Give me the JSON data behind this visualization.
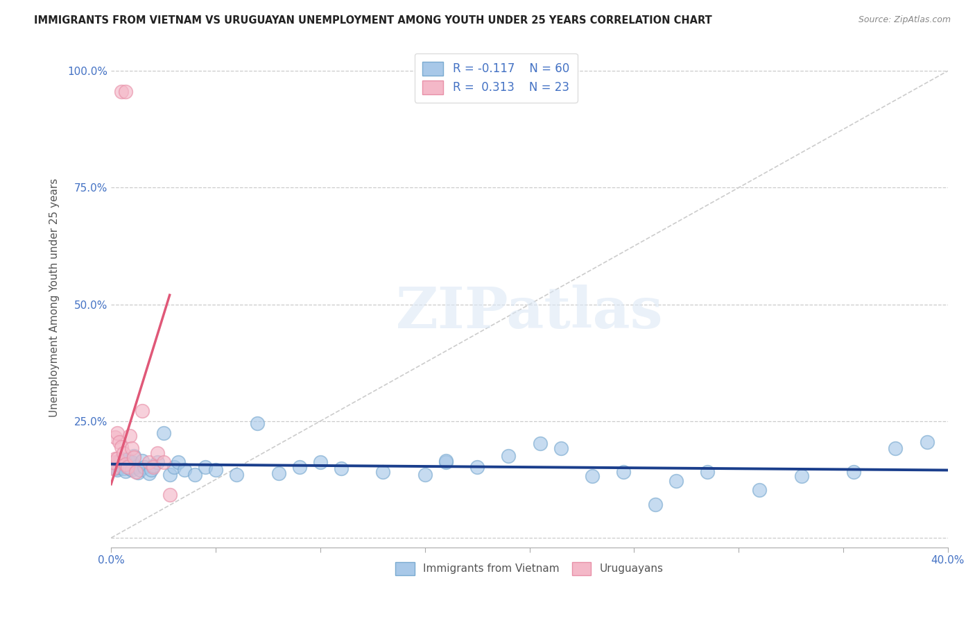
{
  "title": "IMMIGRANTS FROM VIETNAM VS URUGUAYAN UNEMPLOYMENT AMONG YOUTH UNDER 25 YEARS CORRELATION CHART",
  "source": "Source: ZipAtlas.com",
  "ylabel": "Unemployment Among Youth under 25 years",
  "xlim": [
    0.0,
    0.4
  ],
  "ylim": [
    -0.02,
    1.05
  ],
  "xticks": [
    0.0,
    0.05,
    0.1,
    0.15,
    0.2,
    0.25,
    0.3,
    0.35,
    0.4
  ],
  "yticks": [
    0.0,
    0.25,
    0.5,
    0.75,
    1.0
  ],
  "ytick_labels": [
    "",
    "25.0%",
    "50.0%",
    "75.0%",
    "100.0%"
  ],
  "bg_color": "#ffffff",
  "grid_color": "#cccccc",
  "r_blue": -0.117,
  "n_blue": 60,
  "r_pink": 0.313,
  "n_pink": 23,
  "blue_color": "#a8c8e8",
  "pink_color": "#f4b8c8",
  "blue_edge_color": "#7aaad0",
  "pink_edge_color": "#e890a8",
  "blue_line_color": "#1a3e8c",
  "pink_line_color": "#e05878",
  "diag_line_color": "#cccccc",
  "blue_scatter_x": [
    0.001,
    0.002,
    0.002,
    0.003,
    0.003,
    0.004,
    0.004,
    0.005,
    0.005,
    0.006,
    0.006,
    0.007,
    0.007,
    0.008,
    0.008,
    0.009,
    0.01,
    0.01,
    0.011,
    0.012,
    0.013,
    0.014,
    0.015,
    0.016,
    0.018,
    0.019,
    0.02,
    0.022,
    0.025,
    0.028,
    0.03,
    0.032,
    0.035,
    0.04,
    0.045,
    0.05,
    0.06,
    0.07,
    0.08,
    0.09,
    0.1,
    0.11,
    0.13,
    0.15,
    0.16,
    0.175,
    0.19,
    0.205,
    0.215,
    0.23,
    0.245,
    0.26,
    0.285,
    0.31,
    0.33,
    0.355,
    0.375,
    0.16,
    0.27,
    0.39
  ],
  "blue_scatter_y": [
    0.155,
    0.148,
    0.16,
    0.145,
    0.162,
    0.15,
    0.165,
    0.155,
    0.17,
    0.148,
    0.158,
    0.143,
    0.162,
    0.155,
    0.168,
    0.148,
    0.162,
    0.145,
    0.175,
    0.152,
    0.14,
    0.145,
    0.165,
    0.152,
    0.138,
    0.145,
    0.155,
    0.162,
    0.225,
    0.135,
    0.152,
    0.162,
    0.145,
    0.135,
    0.152,
    0.145,
    0.135,
    0.245,
    0.138,
    0.152,
    0.162,
    0.148,
    0.142,
    0.135,
    0.162,
    0.152,
    0.175,
    0.202,
    0.192,
    0.132,
    0.142,
    0.072,
    0.142,
    0.102,
    0.132,
    0.142,
    0.192,
    0.165,
    0.122,
    0.205
  ],
  "pink_scatter_x": [
    0.001,
    0.001,
    0.002,
    0.002,
    0.003,
    0.003,
    0.004,
    0.005,
    0.006,
    0.007,
    0.008,
    0.009,
    0.01,
    0.011,
    0.012,
    0.015,
    0.018,
    0.02,
    0.022,
    0.025,
    0.028,
    0.005,
    0.007
  ],
  "pink_scatter_y": [
    0.148,
    0.162,
    0.215,
    0.17,
    0.17,
    0.225,
    0.205,
    0.195,
    0.182,
    0.158,
    0.152,
    0.218,
    0.192,
    0.172,
    0.142,
    0.272,
    0.162,
    0.152,
    0.182,
    0.162,
    0.092,
    0.955,
    0.955
  ],
  "pink_line_x0": 0.0,
  "pink_line_y0": 0.115,
  "pink_line_x1": 0.028,
  "pink_line_y1": 0.52,
  "blue_line_x0": 0.0,
  "blue_line_y0": 0.158,
  "blue_line_x1": 0.4,
  "blue_line_y1": 0.145,
  "legend_label_blue": "Immigrants from Vietnam",
  "legend_label_pink": "Uruguayans"
}
